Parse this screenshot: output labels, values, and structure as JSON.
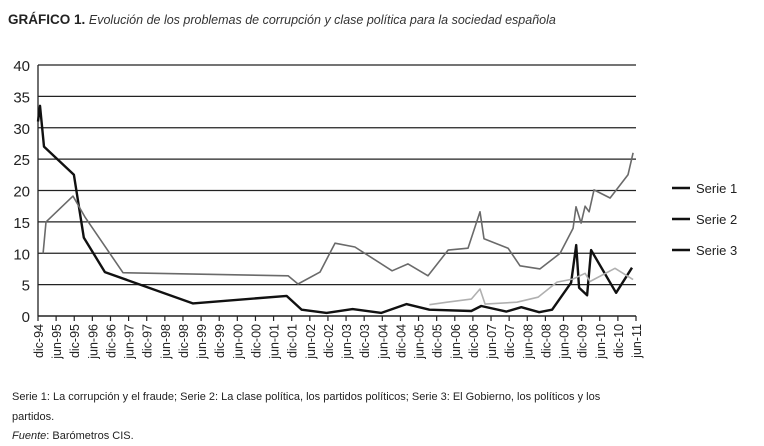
{
  "chart_data": {
    "type": "line",
    "title_prefix": "GRÁFICO 1.",
    "title": "Evolución de los problemas de corrupción y clase política para la sociedad española",
    "xlabel": "",
    "ylabel": "",
    "ylim": [
      0,
      40
    ],
    "yticks": [
      0,
      5,
      10,
      15,
      20,
      25,
      30,
      35,
      40
    ],
    "grid": true,
    "legend_position": "right",
    "categories": [
      "dic-94",
      "jun-95",
      "dic-95",
      "jun-96",
      "dic-96",
      "jun-97",
      "dic-97",
      "jun-98",
      "dic-98",
      "jun-99",
      "dic-99",
      "jun-00",
      "dic-00",
      "jun-01",
      "dic-01",
      "jun-02",
      "dic-02",
      "jun-03",
      "dic-03",
      "jun-04",
      "dic-04",
      "jun-05",
      "dic-05",
      "jun-06",
      "dic-06",
      "jun-07",
      "dic-07",
      "jun-08",
      "dic-08",
      "jun-09",
      "dic-09",
      "jun-10",
      "dic-10",
      "jun-11"
    ],
    "x_note": "point x values are positions on the category axis (0 = dic-94, 33 = jun-11)",
    "series": [
      {
        "name": "Serie 1",
        "color": "#111111",
        "width": 2.4,
        "points": [
          [
            0,
            31
          ],
          [
            0.11,
            33.5
          ],
          [
            0.33,
            27
          ],
          [
            1.98,
            22.5
          ],
          [
            2.53,
            12.5
          ],
          [
            3.69,
            7
          ],
          [
            8.54,
            2
          ],
          [
            13.72,
            3.2
          ],
          [
            14.55,
            1
          ],
          [
            15.92,
            0.5
          ],
          [
            17.36,
            1.1
          ],
          [
            18.95,
            0.5
          ],
          [
            20.33,
            1.9
          ],
          [
            21.6,
            1
          ],
          [
            23.91,
            0.8
          ],
          [
            24.46,
            1.6
          ],
          [
            25.84,
            0.7
          ],
          [
            26.67,
            1.4
          ],
          [
            27.66,
            0.6
          ],
          [
            28.37,
            1
          ],
          [
            29.42,
            5.3
          ],
          [
            29.7,
            11.3
          ],
          [
            29.86,
            4.5
          ],
          [
            30.3,
            3.3
          ],
          [
            30.52,
            10.5
          ],
          [
            31.9,
            3.7
          ],
          [
            32.78,
            7.7
          ]
        ]
      },
      {
        "name": "Serie 2",
        "color": "#6a6a6a",
        "width": 1.6,
        "points": [
          [
            0.28,
            10
          ],
          [
            0.44,
            15
          ],
          [
            1.93,
            19.1
          ],
          [
            2.59,
            15.8
          ],
          [
            4.69,
            6.9
          ],
          [
            13.8,
            6.4
          ],
          [
            14.35,
            5.1
          ],
          [
            15.56,
            7
          ],
          [
            16.39,
            11.6
          ],
          [
            17.49,
            11
          ],
          [
            19.54,
            7.2
          ],
          [
            20.42,
            8.3
          ],
          [
            21.52,
            6.4
          ],
          [
            22.63,
            10.5
          ],
          [
            23.73,
            10.8
          ],
          [
            24.39,
            16.6
          ],
          [
            24.61,
            12.3
          ],
          [
            25.94,
            10.8
          ],
          [
            26.6,
            8
          ],
          [
            27.7,
            7.5
          ],
          [
            28.81,
            10
          ],
          [
            29.53,
            14
          ],
          [
            29.69,
            17.4
          ],
          [
            29.97,
            14.8
          ],
          [
            30.19,
            17.5
          ],
          [
            30.41,
            16.6
          ],
          [
            30.68,
            20.1
          ],
          [
            31.57,
            18.8
          ],
          [
            32.56,
            22.5
          ],
          [
            32.84,
            26
          ]
        ]
      },
      {
        "name": "Serie 3",
        "color": "#b0b0b0",
        "width": 1.6,
        "points": [
          [
            21.6,
            1.8
          ],
          [
            22.57,
            2.2
          ],
          [
            23.91,
            2.7
          ],
          [
            24.39,
            4.3
          ],
          [
            24.67,
            1.9
          ],
          [
            26.43,
            2.2
          ],
          [
            27.59,
            3
          ],
          [
            28.64,
            5.4
          ],
          [
            29.53,
            5.9
          ],
          [
            30.19,
            6.8
          ],
          [
            30.46,
            5.5
          ],
          [
            31.84,
            7.6
          ],
          [
            32.84,
            5.8
          ]
        ]
      }
    ]
  },
  "notes": {
    "series_desc": "Serie 1: La corrupción y el fraude; Serie 2: La clase política, los partidos políticos; Serie 3: El Gobierno, los políticos y los",
    "series_desc_cont": "partidos.",
    "source_label": "Fuente",
    "source_text": ": Barómetros CIS."
  }
}
